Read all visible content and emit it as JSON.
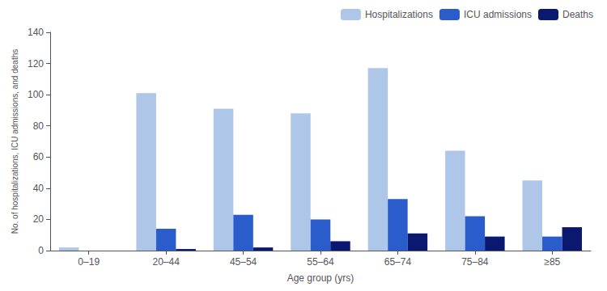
{
  "chart_data": {
    "type": "bar",
    "xlabel": "Age group (yrs)",
    "ylabel": "No. of hospitalizations, ICU admissions, and deaths",
    "categories": [
      "0–19",
      "20–44",
      "45–54",
      "55–64",
      "65–74",
      "75–84",
      "≥85"
    ],
    "series": [
      {
        "name": "Hospitalizations",
        "color": "#aec6e8",
        "values": [
          2,
          101,
          91,
          88,
          117,
          64,
          45
        ]
      },
      {
        "name": "ICU admissions",
        "color": "#2a5ccc",
        "values": [
          0,
          14,
          23,
          20,
          33,
          22,
          9
        ]
      },
      {
        "name": "Deaths",
        "color": "#0a1870",
        "values": [
          0,
          1,
          2,
          6,
          11,
          9,
          15
        ]
      }
    ],
    "ylim": [
      0,
      140
    ],
    "yticks": [
      0,
      20,
      40,
      60,
      80,
      100,
      120,
      140
    ],
    "grid": false,
    "legend": "upper right"
  }
}
